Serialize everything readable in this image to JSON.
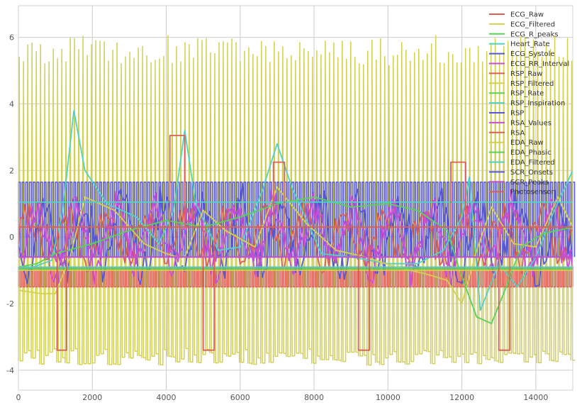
{
  "chart_data": {
    "type": "line",
    "title": "",
    "xlabel": "",
    "ylabel": "",
    "xlim": [
      0,
      15000
    ],
    "ylim": [
      -4.6,
      6.95
    ],
    "xticks": [
      0,
      2000,
      4000,
      6000,
      8000,
      10000,
      12000,
      14000
    ],
    "yticks": [
      -4,
      -2,
      0,
      2,
      4,
      6
    ],
    "grid": true,
    "legend_position": "top-right",
    "series": [
      {
        "name": "ECG_Raw",
        "color": "#db5f57",
        "kind": "noise",
        "mean": 0.0,
        "amp": 0.9
      },
      {
        "name": "ECG_Filtered",
        "color": "#d3d04f",
        "kind": "spikes",
        "period": 115,
        "high": 5.6,
        "low": -3.6
      },
      {
        "name": "ECG_R_peaks",
        "color": "#57d356",
        "kind": "flat",
        "value": 0.3
      },
      {
        "name": "Heart_Rate",
        "color": "#4fd3c4",
        "kind": "points",
        "x": [
          0,
          400,
          900,
          1200,
          1500,
          1800,
          2400,
          3200,
          3800,
          4200,
          4500,
          4800,
          5400,
          6000,
          6600,
          7000,
          7400,
          8200,
          9000,
          10000,
          10800,
          11500,
          12000,
          12200,
          12500,
          13000,
          13500,
          14000,
          14500,
          15000
        ],
        "y": [
          -1.0,
          -0.9,
          -0.7,
          0.8,
          3.8,
          2.0,
          1.0,
          0.6,
          -0.2,
          0.8,
          3.2,
          1.0,
          -0.4,
          -0.3,
          1.4,
          2.8,
          1.5,
          -0.5,
          -0.6,
          -0.8,
          -0.8,
          -0.4,
          0.6,
          1.8,
          -2.2,
          -0.8,
          -1.5,
          -0.6,
          0.8,
          2.0
        ]
      },
      {
        "name": "ECG_Systole",
        "color": "#5757d3",
        "kind": "square",
        "period": 100,
        "high": 1.65,
        "low": -0.6
      },
      {
        "name": "ECG_RR_Interval",
        "color": "#c84fd3",
        "kind": "noise",
        "mean": 0.0,
        "amp": 1.2
      },
      {
        "name": "RSP_Raw",
        "color": "#db5f57",
        "kind": "square",
        "period": 85,
        "high": -0.9,
        "low": -1.5
      },
      {
        "name": "RSP_Filtered",
        "color": "#d3d04f",
        "kind": "points",
        "x": [
          0,
          600,
          1000,
          1400,
          1800,
          2600,
          3400,
          4000,
          4300,
          4500,
          5000,
          5600,
          6400,
          7000,
          7800,
          8600,
          9400,
          10200,
          11000,
          11600,
          12000,
          12400,
          12800,
          13400,
          14000,
          14600,
          15000
        ],
        "y": [
          -1.6,
          -1.7,
          -1.7,
          -0.6,
          1.2,
          0.8,
          -0.2,
          -0.5,
          -0.6,
          -0.6,
          0.8,
          0.2,
          -0.3,
          1.5,
          0.4,
          -0.4,
          -0.6,
          -0.9,
          -1.1,
          -1.3,
          -2.0,
          -0.4,
          0.9,
          -0.2,
          -0.3,
          1.2,
          0.3
        ]
      },
      {
        "name": "RSP_Rate",
        "color": "#57d356",
        "kind": "points",
        "x": [
          0,
          500,
          1000,
          2000,
          3000,
          4000,
          5000,
          6000,
          7000,
          8000,
          9000,
          10000,
          10800,
          11600,
          12000,
          12400,
          12800,
          13200,
          13600,
          14200,
          15000
        ],
        "y": [
          -0.9,
          -0.8,
          -0.5,
          -0.2,
          0.2,
          0.5,
          0.3,
          0.6,
          1.0,
          1.2,
          0.9,
          1.0,
          0.8,
          0.2,
          -1.2,
          -2.4,
          -2.6,
          -1.5,
          -0.3,
          0.1,
          0.3
        ]
      },
      {
        "name": "RSP_Inspiration",
        "color": "#4fd3c4",
        "kind": "flat",
        "value": 1.05
      },
      {
        "name": "RSP",
        "color": "#5757d3",
        "kind": "noise",
        "mean": 0.0,
        "amp": 1.3
      },
      {
        "name": "RSA_Values",
        "color": "#c84fd3",
        "kind": "noise",
        "mean": 0.1,
        "amp": 0.9
      },
      {
        "name": "RSA",
        "color": "#db5f57",
        "kind": "steps",
        "x": [
          0,
          1050,
          1050,
          1300,
          1300,
          4100,
          4100,
          4500,
          4500,
          5000,
          5000,
          5300,
          5300,
          6900,
          6900,
          7200,
          7200,
          9200,
          9200,
          9500,
          9500,
          11700,
          11700,
          12100,
          12100,
          13000,
          13000,
          13300,
          13300,
          15000
        ],
        "y": [
          0.3,
          0.3,
          -3.4,
          -3.4,
          0.3,
          0.3,
          3.05,
          3.05,
          0.3,
          0.3,
          -3.4,
          -3.4,
          0.3,
          0.3,
          2.25,
          2.25,
          0.3,
          0.3,
          -3.4,
          -3.4,
          0.3,
          0.3,
          2.25,
          2.25,
          0.3,
          0.3,
          -3.4,
          -3.4,
          0.3,
          0.3
        ]
      },
      {
        "name": "EDA_Raw",
        "color": "#d3d04f",
        "kind": "flat",
        "value": -1.0
      },
      {
        "name": "EDA_Phasic",
        "color": "#57d356",
        "kind": "flat",
        "value": -0.95
      },
      {
        "name": "EDA_Filtered",
        "color": "#4fd3c4",
        "kind": "flat",
        "value": -0.9
      },
      {
        "name": "SCR_Onsets",
        "color": "#5757d3",
        "kind": "flat",
        "value": -0.6
      },
      {
        "name": "SCR_Peaks",
        "color": "#c84fd3",
        "kind": "flat",
        "value": -0.6
      },
      {
        "name": "Photosensor",
        "color": "#db5f57",
        "kind": "flat",
        "value": 0.3
      }
    ]
  }
}
